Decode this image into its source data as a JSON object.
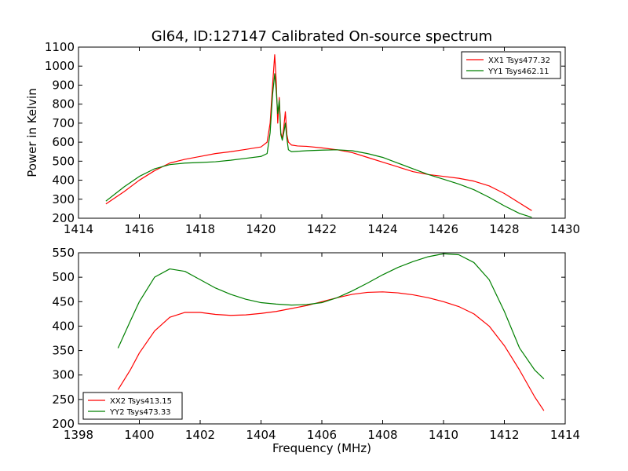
{
  "title": "Gl64, ID:127147 Calibrated On-source spectrum",
  "colors": {
    "red": "#ff0000",
    "green": "#008000"
  },
  "chart_data": [
    {
      "type": "line",
      "xlabel": "",
      "ylabel": "Power in Kelvin",
      "xlim": [
        1414,
        1430
      ],
      "ylim": [
        200,
        1100
      ],
      "xticks": [
        "1414",
        "1416",
        "1418",
        "1420",
        "1422",
        "1424",
        "1426",
        "1428",
        "1430"
      ],
      "yticks": [
        "200",
        "300",
        "400",
        "500",
        "600",
        "700",
        "800",
        "900",
        "1000",
        "1100"
      ],
      "legend_position": "top-right",
      "series": [
        {
          "name": "XX1 Tsys477.32",
          "color": "#ff0000",
          "x": [
            1414.9,
            1415.5,
            1416,
            1416.5,
            1417,
            1417.5,
            1418,
            1418.5,
            1419,
            1419.5,
            1420,
            1420.2,
            1420.3,
            1420.38,
            1420.45,
            1420.5,
            1420.55,
            1420.6,
            1420.65,
            1420.7,
            1420.75,
            1420.8,
            1420.85,
            1420.9,
            1421,
            1421.2,
            1421.5,
            1422,
            1422.5,
            1423,
            1423.5,
            1424,
            1424.5,
            1425,
            1425.5,
            1426,
            1426.5,
            1427,
            1427.5,
            1428,
            1428.5,
            1428.9
          ],
          "y": [
            275,
            340,
            400,
            450,
            490,
            510,
            525,
            540,
            550,
            562,
            575,
            600,
            700,
            900,
            1060,
            920,
            700,
            835,
            650,
            620,
            680,
            760,
            640,
            600,
            585,
            580,
            578,
            570,
            560,
            545,
            520,
            495,
            470,
            445,
            430,
            420,
            410,
            395,
            370,
            330,
            280,
            240
          ]
        },
        {
          "name": "YY1 Tsys462.11",
          "color": "#008000",
          "x": [
            1414.9,
            1415.5,
            1416,
            1416.5,
            1417,
            1417.5,
            1418,
            1418.5,
            1419,
            1419.5,
            1420,
            1420.2,
            1420.3,
            1420.38,
            1420.45,
            1420.5,
            1420.55,
            1420.6,
            1420.65,
            1420.7,
            1420.75,
            1420.8,
            1420.85,
            1420.9,
            1421,
            1421.2,
            1421.5,
            1422,
            1422.5,
            1423,
            1423.5,
            1424,
            1424.5,
            1425,
            1425.5,
            1426,
            1426.5,
            1427,
            1427.5,
            1428,
            1428.5,
            1428.9
          ],
          "y": [
            290,
            365,
            420,
            460,
            482,
            490,
            493,
            497,
            505,
            515,
            525,
            540,
            650,
            850,
            960,
            870,
            750,
            820,
            640,
            610,
            650,
            700,
            620,
            560,
            550,
            552,
            555,
            558,
            560,
            555,
            540,
            520,
            490,
            460,
            430,
            405,
            380,
            350,
            310,
            265,
            225,
            205
          ]
        }
      ]
    },
    {
      "type": "line",
      "xlabel": "Frequency (MHz)",
      "ylabel": "",
      "xlim": [
        1398,
        1414
      ],
      "ylim": [
        200,
        550
      ],
      "xticks": [
        "1398",
        "1400",
        "1402",
        "1404",
        "1406",
        "1408",
        "1410",
        "1412",
        "1414"
      ],
      "yticks": [
        "200",
        "250",
        "300",
        "350",
        "400",
        "450",
        "500",
        "550"
      ],
      "legend_position": "bottom-left",
      "series": [
        {
          "name": "XX2 Tsys413.15",
          "color": "#ff0000",
          "x": [
            1399.3,
            1399.7,
            1400,
            1400.5,
            1401,
            1401.5,
            1402,
            1402.5,
            1403,
            1403.5,
            1404,
            1404.5,
            1405,
            1405.5,
            1406,
            1406.5,
            1407,
            1407.5,
            1408,
            1408.5,
            1409,
            1409.5,
            1410,
            1410.5,
            1411,
            1411.5,
            1412,
            1412.5,
            1413,
            1413.3
          ],
          "y": [
            270,
            310,
            345,
            390,
            418,
            428,
            428,
            424,
            422,
            423,
            426,
            430,
            436,
            442,
            450,
            458,
            465,
            469,
            470,
            468,
            464,
            458,
            450,
            440,
            425,
            400,
            360,
            310,
            255,
            227
          ]
        },
        {
          "name": "YY2 Tsys473.33",
          "color": "#008000",
          "x": [
            1399.3,
            1399.7,
            1400,
            1400.5,
            1401,
            1401.5,
            1402,
            1402.5,
            1403,
            1403.5,
            1404,
            1404.5,
            1405,
            1405.5,
            1406,
            1406.5,
            1407,
            1407.5,
            1408,
            1408.5,
            1409,
            1409.5,
            1410,
            1410.5,
            1411,
            1411.5,
            1412,
            1412.5,
            1413,
            1413.3
          ],
          "y": [
            355,
            410,
            450,
            500,
            517,
            512,
            495,
            478,
            465,
            455,
            448,
            445,
            443,
            444,
            448,
            458,
            472,
            488,
            505,
            520,
            532,
            542,
            548,
            546,
            530,
            495,
            430,
            355,
            310,
            292
          ]
        }
      ]
    }
  ]
}
